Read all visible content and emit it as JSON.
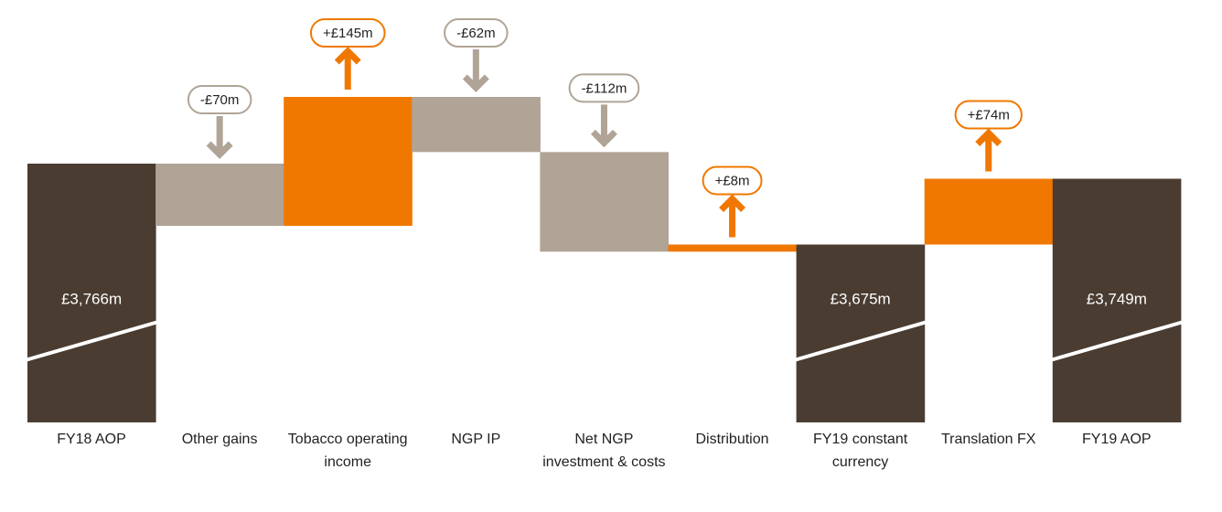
{
  "chart_data": {
    "type": "waterfall",
    "categories": [
      "FY18 AOP",
      "Other gains",
      "Tobacco operating income",
      "NGP IP",
      "Net NGP investment & costs",
      "Distribution",
      "FY19 constant currency",
      "Translation FX",
      "FY19 AOP"
    ],
    "values": [
      3766,
      -70,
      145,
      -62,
      -112,
      8,
      3675,
      74,
      3749
    ],
    "value_labels": [
      "£3,766m",
      "-£70m",
      "+£145m",
      "-£62m",
      "-£112m",
      "+£8m",
      "£3,675m",
      "+£74m",
      "£3,749m"
    ],
    "is_total": [
      true,
      false,
      false,
      false,
      false,
      false,
      true,
      false,
      true
    ],
    "total_color": "#4a3c31",
    "increase_color": "#f07800",
    "decrease_color": "#b0a497",
    "ylim": [
      3475,
      3950
    ],
    "axis_break": true
  }
}
